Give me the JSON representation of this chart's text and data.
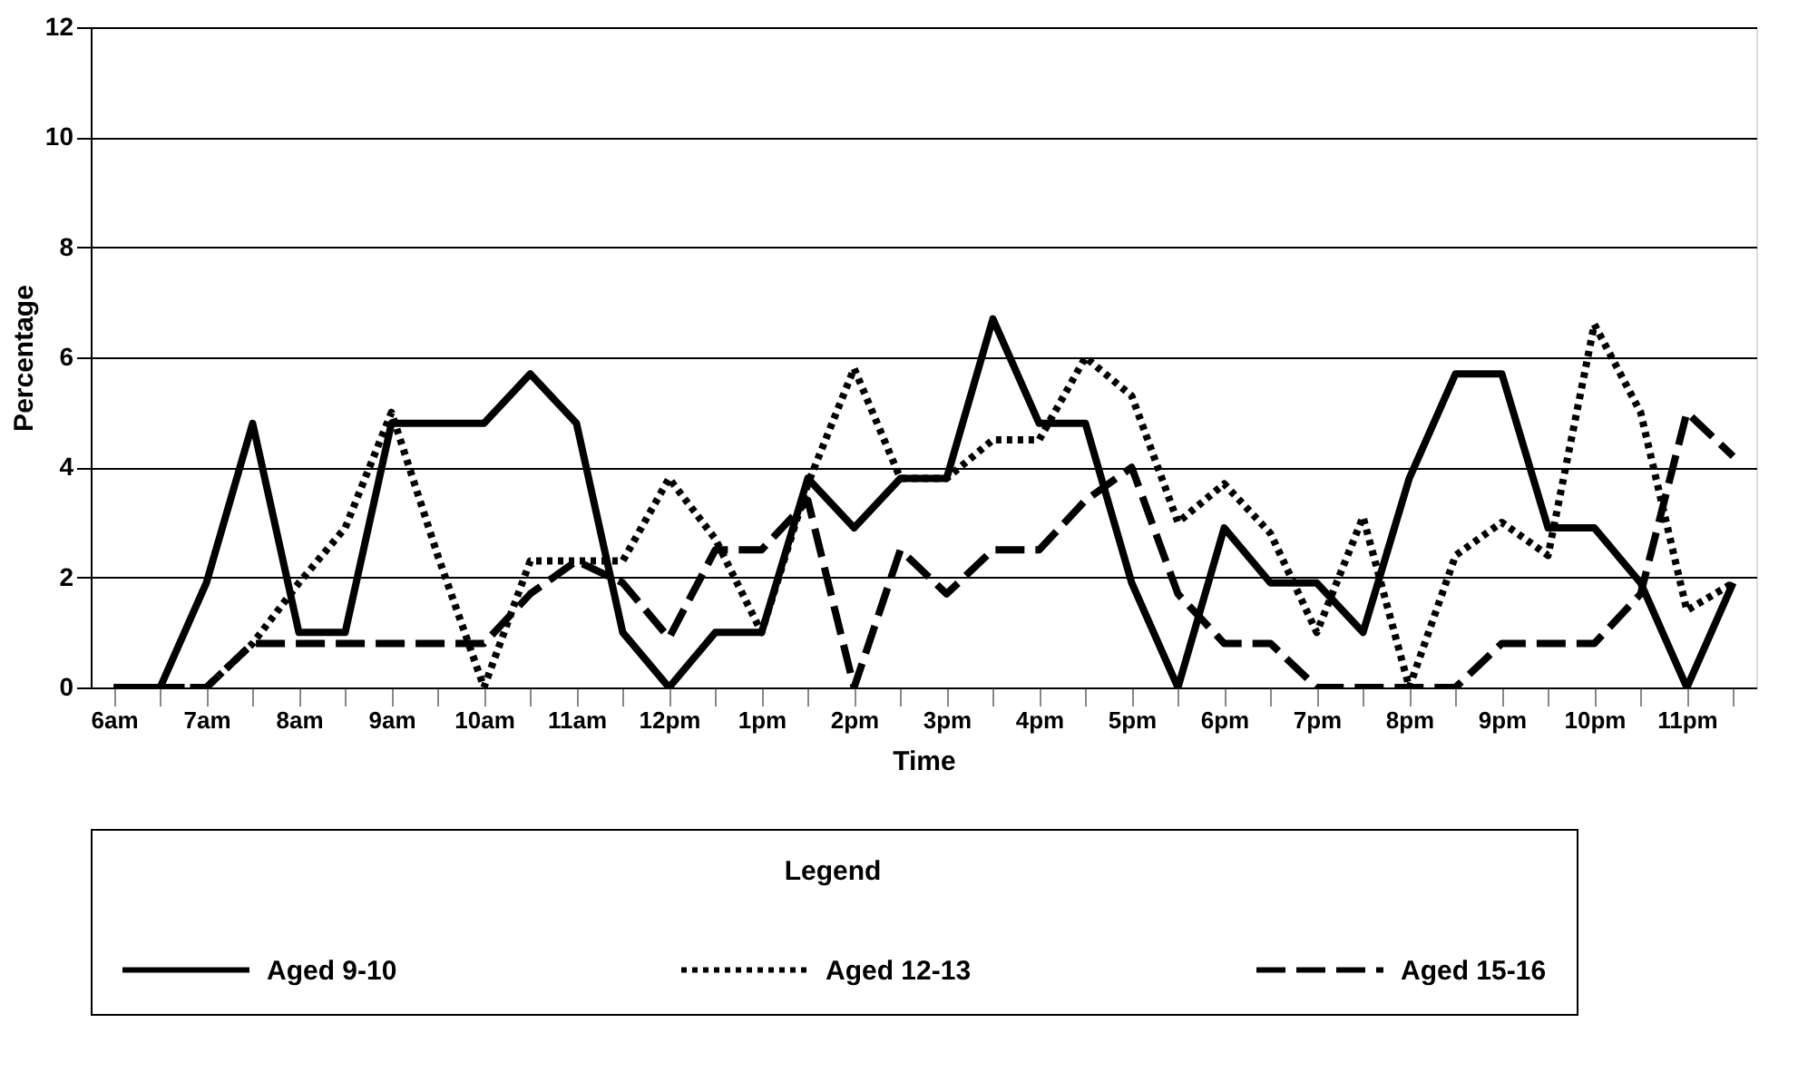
{
  "chart_data": {
    "type": "line",
    "xlabel": "Time",
    "ylabel": "Percentage",
    "legend_title": "Legend",
    "categories": [
      "6am",
      null,
      "7am",
      null,
      "8am",
      null,
      "9am",
      null,
      "10am",
      null,
      "11am",
      null,
      "12pm",
      null,
      "1pm",
      null,
      "2pm",
      null,
      "3pm",
      null,
      "4pm",
      null,
      "5pm",
      null,
      "6pm",
      null,
      "7pm",
      null,
      "8pm",
      null,
      "9pm",
      null,
      "10pm",
      null,
      "11pm",
      null
    ],
    "series": [
      {
        "name": "Aged 9-10",
        "color": "#000000",
        "line_style": "solid",
        "values": [
          0,
          0,
          1.9,
          4.8,
          1.0,
          1.0,
          4.8,
          4.8,
          4.8,
          5.7,
          4.8,
          1.0,
          0,
          1.0,
          1.0,
          3.8,
          2.9,
          3.8,
          3.8,
          6.7,
          4.8,
          4.8,
          1.9,
          0,
          2.9,
          1.9,
          1.9,
          1.0,
          3.8,
          5.7,
          5.7,
          2.9,
          2.9,
          1.9,
          0,
          1.9
        ]
      },
      {
        "name": "Aged 12-13",
        "color": "#000000",
        "line_style": "dotted",
        "values": [
          0,
          0,
          0,
          0.8,
          1.9,
          2.9,
          5.0,
          2.4,
          0,
          2.3,
          2.3,
          2.3,
          3.8,
          2.7,
          1.0,
          3.7,
          5.8,
          3.8,
          3.8,
          4.5,
          4.5,
          6.0,
          5.3,
          3.0,
          3.7,
          2.8,
          1.0,
          3.1,
          0,
          2.4,
          3.0,
          2.4,
          6.6,
          5.0,
          1.4,
          1.9
        ]
      },
      {
        "name": "Aged 15-16",
        "color": "#000000",
        "line_style": "dashed",
        "values": [
          0,
          0,
          0,
          0.8,
          0.8,
          0.8,
          0.8,
          0.8,
          0.8,
          1.7,
          2.3,
          1.9,
          0.9,
          2.5,
          2.5,
          3.4,
          0,
          2.5,
          1.7,
          2.5,
          2.5,
          3.4,
          4.0,
          1.7,
          0.8,
          0.8,
          0,
          0,
          0,
          0,
          0.8,
          0.8,
          0.8,
          1.7,
          5.0,
          4.2
        ]
      }
    ],
    "ylim": [
      0,
      12
    ],
    "yticks": [
      0,
      2,
      4,
      6,
      8,
      10,
      12
    ],
    "grid": "y",
    "legend": "bottom",
    "marker": "none"
  }
}
